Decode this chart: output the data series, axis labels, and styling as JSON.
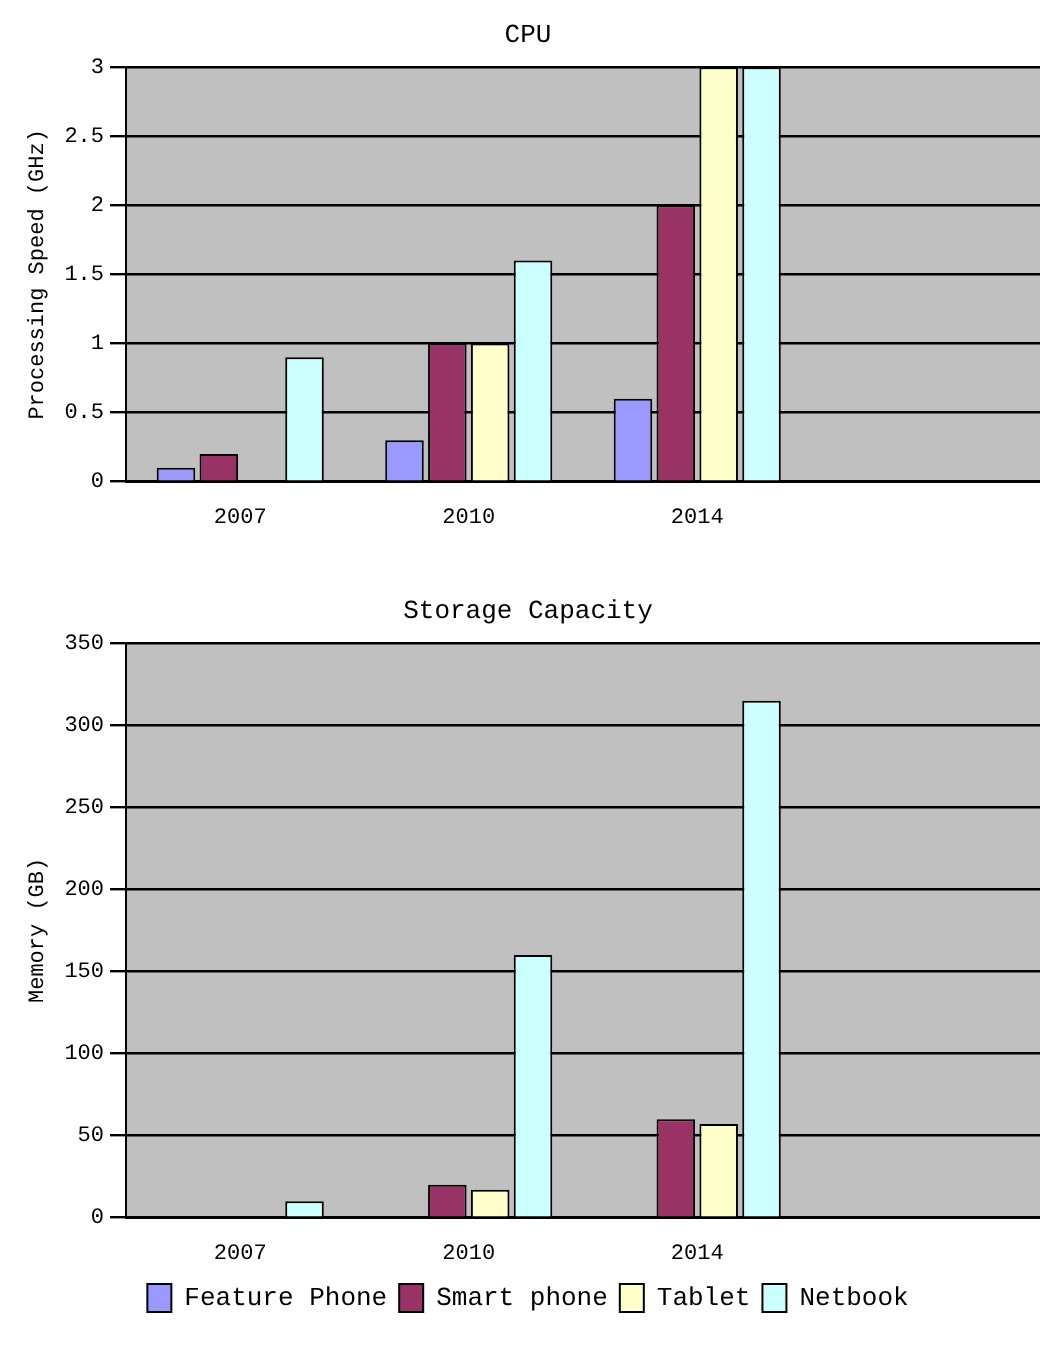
{
  "chart_data": [
    {
      "type": "bar",
      "title": "CPU",
      "ylabel": "Processing Speed (GHz)",
      "categories": [
        "2007",
        "2010",
        "2014",
        null
      ],
      "series": [
        {
          "color": "#9999ff",
          "values": [
            0.1,
            0.3,
            0.6,
            null
          ]
        },
        {
          "color": "#993366",
          "values": [
            0.2,
            1.0,
            2.0,
            null
          ]
        },
        {
          "color": "#ffffcc",
          "values": [
            0,
            1.0,
            3.0,
            null
          ]
        },
        {
          "color": "#ccffff",
          "values": [
            0.9,
            1.6,
            3.0,
            null
          ]
        }
      ],
      "ylim": [
        0,
        3
      ],
      "yticks": [
        0,
        0.5,
        1,
        1.5,
        2,
        2.5,
        3
      ],
      "grid": "y",
      "legend": false
    },
    {
      "type": "bar",
      "title": "Storage Capacity",
      "ylabel": "Memory (GB)",
      "categories": [
        "2007",
        "2010",
        "2014",
        null
      ],
      "series": [
        {
          "name": "Feature Phone",
          "color": "#9999ff",
          "values": [
            0,
            0,
            0,
            null
          ]
        },
        {
          "name": "Smart phone",
          "color": "#993366",
          "values": [
            0,
            20,
            60,
            null
          ]
        },
        {
          "name": "Tablet",
          "color": "#ffffcc",
          "values": [
            0,
            17,
            57,
            null
          ]
        },
        {
          "name": "Netbook",
          "color": "#ccffff",
          "values": [
            10,
            160,
            315,
            null
          ]
        }
      ],
      "ylim": [
        0,
        350
      ],
      "yticks": [
        0,
        50,
        100,
        150,
        200,
        250,
        300,
        350
      ],
      "grid": "y",
      "legend": "bottom"
    }
  ]
}
